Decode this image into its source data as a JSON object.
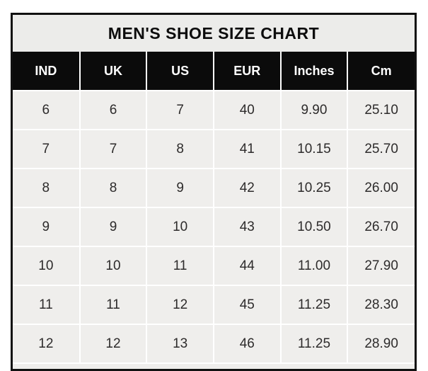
{
  "title": "MEN'S SHOE SIZE CHART",
  "table": {
    "columns": [
      "IND",
      "UK",
      "US",
      "EUR",
      "Inches",
      "Cm"
    ],
    "rows": [
      [
        "6",
        "6",
        "7",
        "40",
        "9.90",
        "25.10"
      ],
      [
        "7",
        "7",
        "8",
        "41",
        "10.15",
        "25.70"
      ],
      [
        "8",
        "8",
        "9",
        "42",
        "10.25",
        "26.00"
      ],
      [
        "9",
        "9",
        "10",
        "43",
        "10.50",
        "26.70"
      ],
      [
        "10",
        "10",
        "11",
        "44",
        "11.00",
        "27.90"
      ],
      [
        "11",
        "11",
        "12",
        "45",
        "11.25",
        "28.30"
      ],
      [
        "12",
        "12",
        "13",
        "46",
        "11.25",
        "28.90"
      ]
    ]
  },
  "colors": {
    "page_bg": "#ffffff",
    "outer_border": "#111111",
    "title_bg": "#ececea",
    "header_bg": "#0b0b0b",
    "header_text": "#ffffff",
    "cell_bg": "#efeeec",
    "grid_line": "#ffffff",
    "body_text": "#2d2b2b",
    "title_text": "#0d0d0d"
  },
  "chart_data": {
    "type": "table",
    "title": "MEN'S SHOE SIZE CHART",
    "columns": [
      "IND",
      "UK",
      "US",
      "EUR",
      "Inches",
      "Cm"
    ],
    "rows": [
      [
        6,
        6,
        7,
        40,
        9.9,
        25.1
      ],
      [
        7,
        7,
        8,
        41,
        10.15,
        25.7
      ],
      [
        8,
        8,
        9,
        42,
        10.25,
        26.0
      ],
      [
        9,
        9,
        10,
        43,
        10.5,
        26.7
      ],
      [
        10,
        10,
        11,
        44,
        11.0,
        27.9
      ],
      [
        11,
        11,
        12,
        45,
        11.25,
        28.3
      ],
      [
        12,
        12,
        13,
        46,
        11.25,
        28.9
      ]
    ]
  }
}
